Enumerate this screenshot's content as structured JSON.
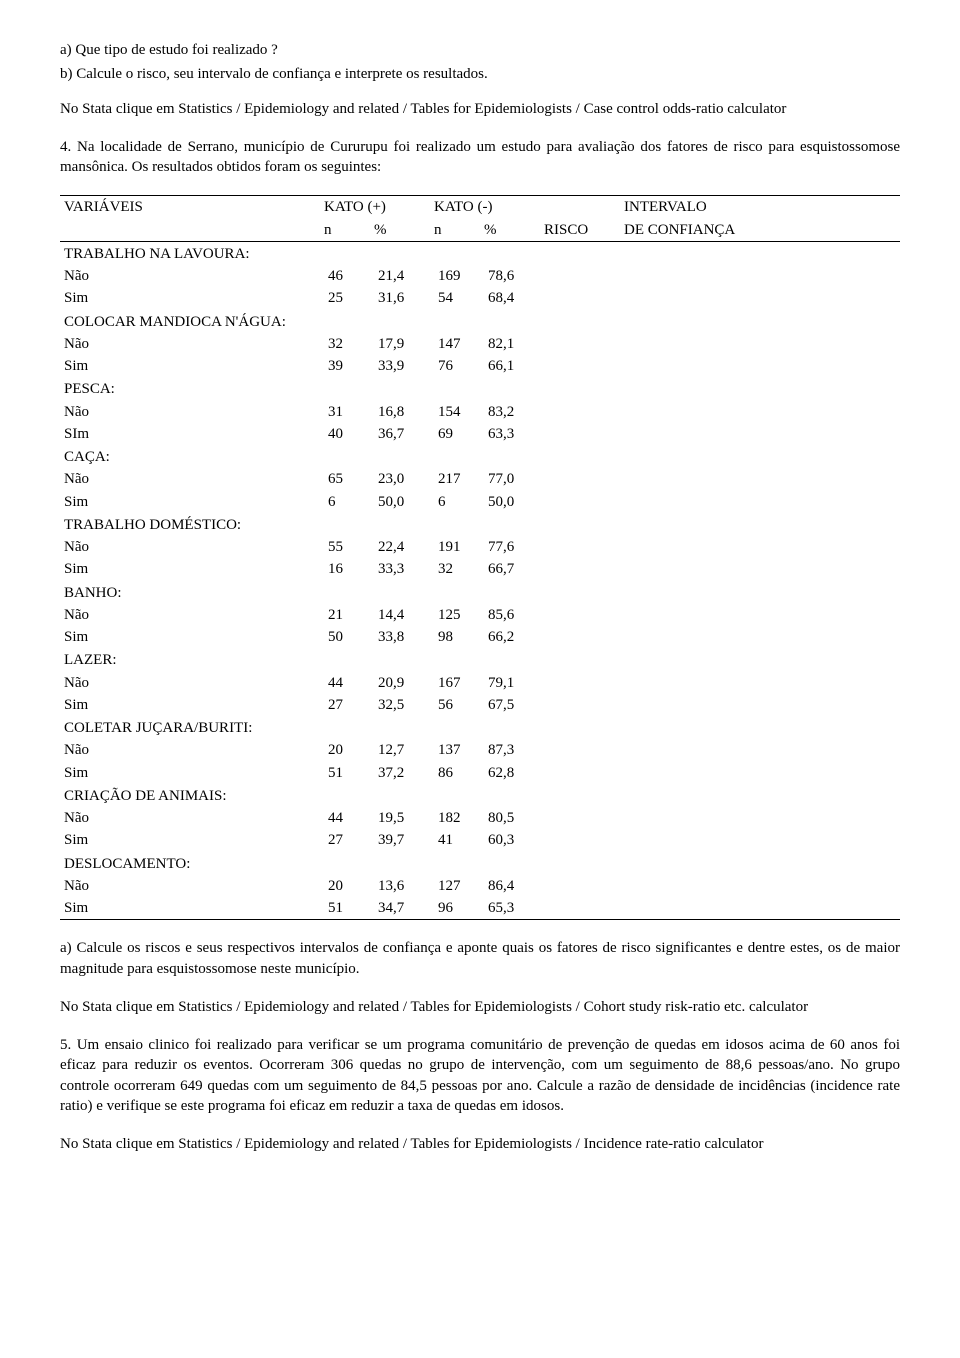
{
  "intro": {
    "qa": "a) Que tipo de estudo foi realizado ?",
    "qb": "b) Calcule o risco, seu intervalo de confiança e interprete os resultados.",
    "stata1": "No Stata clique em Statistics / Epidemiology and related / Tables for Epidemiologists / Case control odds-ratio calculator",
    "q4": "4. Na localidade de Serrano, município de Cururupu foi realizado um estudo para avaliação dos fatores de risco para esquistossomose mansônica. Os resultados obtidos foram os seguintes:"
  },
  "table": {
    "header": {
      "var": "VARIÁVEIS",
      "kato_pos": "KATO (+)",
      "kato_neg": "KATO (-)",
      "intervalo": "INTERVALO",
      "n": "n",
      "pct": "%",
      "risco": "RISCO",
      "deconf": "DE CONFIANÇA"
    },
    "groups": [
      {
        "label": "TRABALHO NA LAVOURA:",
        "rows": [
          {
            "lab": "Não",
            "n1": "46",
            "p1": "21,4",
            "n2": "169",
            "p2": "78,6"
          },
          {
            "lab": "Sim",
            "n1": "25",
            "p1": "31,6",
            "n2": "54",
            "p2": "68,4"
          }
        ]
      },
      {
        "label": "COLOCAR MANDIOCA N'ÁGUA:",
        "rows": [
          {
            "lab": "Não",
            "n1": "32",
            "p1": "17,9",
            "n2": "147",
            "p2": "82,1"
          },
          {
            "lab": "Sim",
            "n1": "39",
            "p1": "33,9",
            "n2": "76",
            "p2": "66,1"
          }
        ]
      },
      {
        "label": "PESCA:",
        "rows": [
          {
            "lab": "Não",
            "n1": "31",
            "p1": "16,8",
            "n2": "154",
            "p2": "83,2"
          },
          {
            "lab": "SIm",
            "n1": "40",
            "p1": "36,7",
            "n2": "69",
            "p2": "63,3"
          }
        ]
      },
      {
        "label": "CAÇA:",
        "rows": [
          {
            "lab": "Não",
            "n1": "65",
            "p1": "23,0",
            "n2": "217",
            "p2": "77,0"
          },
          {
            "lab": "Sim",
            "n1": "6",
            "p1": "50,0",
            "n2": "6",
            "p2": "50,0"
          }
        ]
      },
      {
        "label": "TRABALHO DOMÉSTICO:",
        "rows": [
          {
            "lab": "Não",
            "n1": "55",
            "p1": "22,4",
            "n2": "191",
            "p2": "77,6"
          },
          {
            "lab": "Sim",
            "n1": "16",
            "p1": "33,3",
            "n2": "32",
            "p2": "66,7"
          }
        ]
      },
      {
        "label": "BANHO:",
        "rows": [
          {
            "lab": "Não",
            "n1": "21",
            "p1": "14,4",
            "n2": "125",
            "p2": "85,6"
          },
          {
            "lab": "Sim",
            "n1": "50",
            "p1": "33,8",
            "n2": "98",
            "p2": "66,2"
          }
        ]
      },
      {
        "label": "LAZER:",
        "rows": [
          {
            "lab": "Não",
            "n1": "44",
            "p1": "20,9",
            "n2": "167",
            "p2": "79,1"
          },
          {
            "lab": "Sim",
            "n1": "27",
            "p1": "32,5",
            "n2": "56",
            "p2": "67,5"
          }
        ]
      },
      {
        "label": "COLETAR JUÇARA/BURITI:",
        "rows": [
          {
            "lab": "Não",
            "n1": "20",
            "p1": "12,7",
            "n2": "137",
            "p2": "87,3"
          },
          {
            "lab": "Sim",
            "n1": "51",
            "p1": "37,2",
            "n2": "86",
            "p2": "62,8"
          }
        ]
      },
      {
        "label": "CRIAÇÃO DE ANIMAIS:",
        "rows": [
          {
            "lab": "Não",
            "n1": "44",
            "p1": "19,5",
            "n2": "182",
            "p2": "80,5"
          },
          {
            "lab": "Sim",
            "n1": "27",
            "p1": "39,7",
            "n2": "41",
            "p2": "60,3"
          }
        ]
      },
      {
        "label": "DESLOCAMENTO:",
        "rows": [
          {
            "lab": "Não",
            "n1": "20",
            "p1": "13,6",
            "n2": "127",
            "p2": "86,4"
          },
          {
            "lab": "Sim",
            "n1": "51",
            "p1": "34,7",
            "n2": "96",
            "p2": "65,3"
          }
        ]
      }
    ]
  },
  "outro": {
    "qa2": "a) Calcule os riscos e seus respectivos intervalos de confiança e aponte quais os fatores de risco significantes e dentre estes, os de maior magnitude para esquistossomose neste município.",
    "stata2": "No Stata clique em Statistics / Epidemiology and related / Tables for Epidemiologists / Cohort study risk-ratio etc. calculator",
    "q5": "5. Um ensaio clinico foi realizado para verificar se um programa comunitário de prevenção de quedas em idosos acima de 60 anos foi eficaz para reduzir os eventos. Ocorreram 306 quedas no grupo de intervenção, com um seguimento de 88,6 pessoas/ano. No grupo controle ocorreram 649 quedas com um seguimento de 84,5 pessoas por ano. Calcule a razão de densidade de incidências (incidence rate ratio) e verifique se este programa foi eficaz em reduzir a taxa de quedas em idosos.",
    "stata3": "No Stata clique em Statistics / Epidemiology and related / Tables for Epidemiologists / Incidence  rate-ratio calculator"
  }
}
